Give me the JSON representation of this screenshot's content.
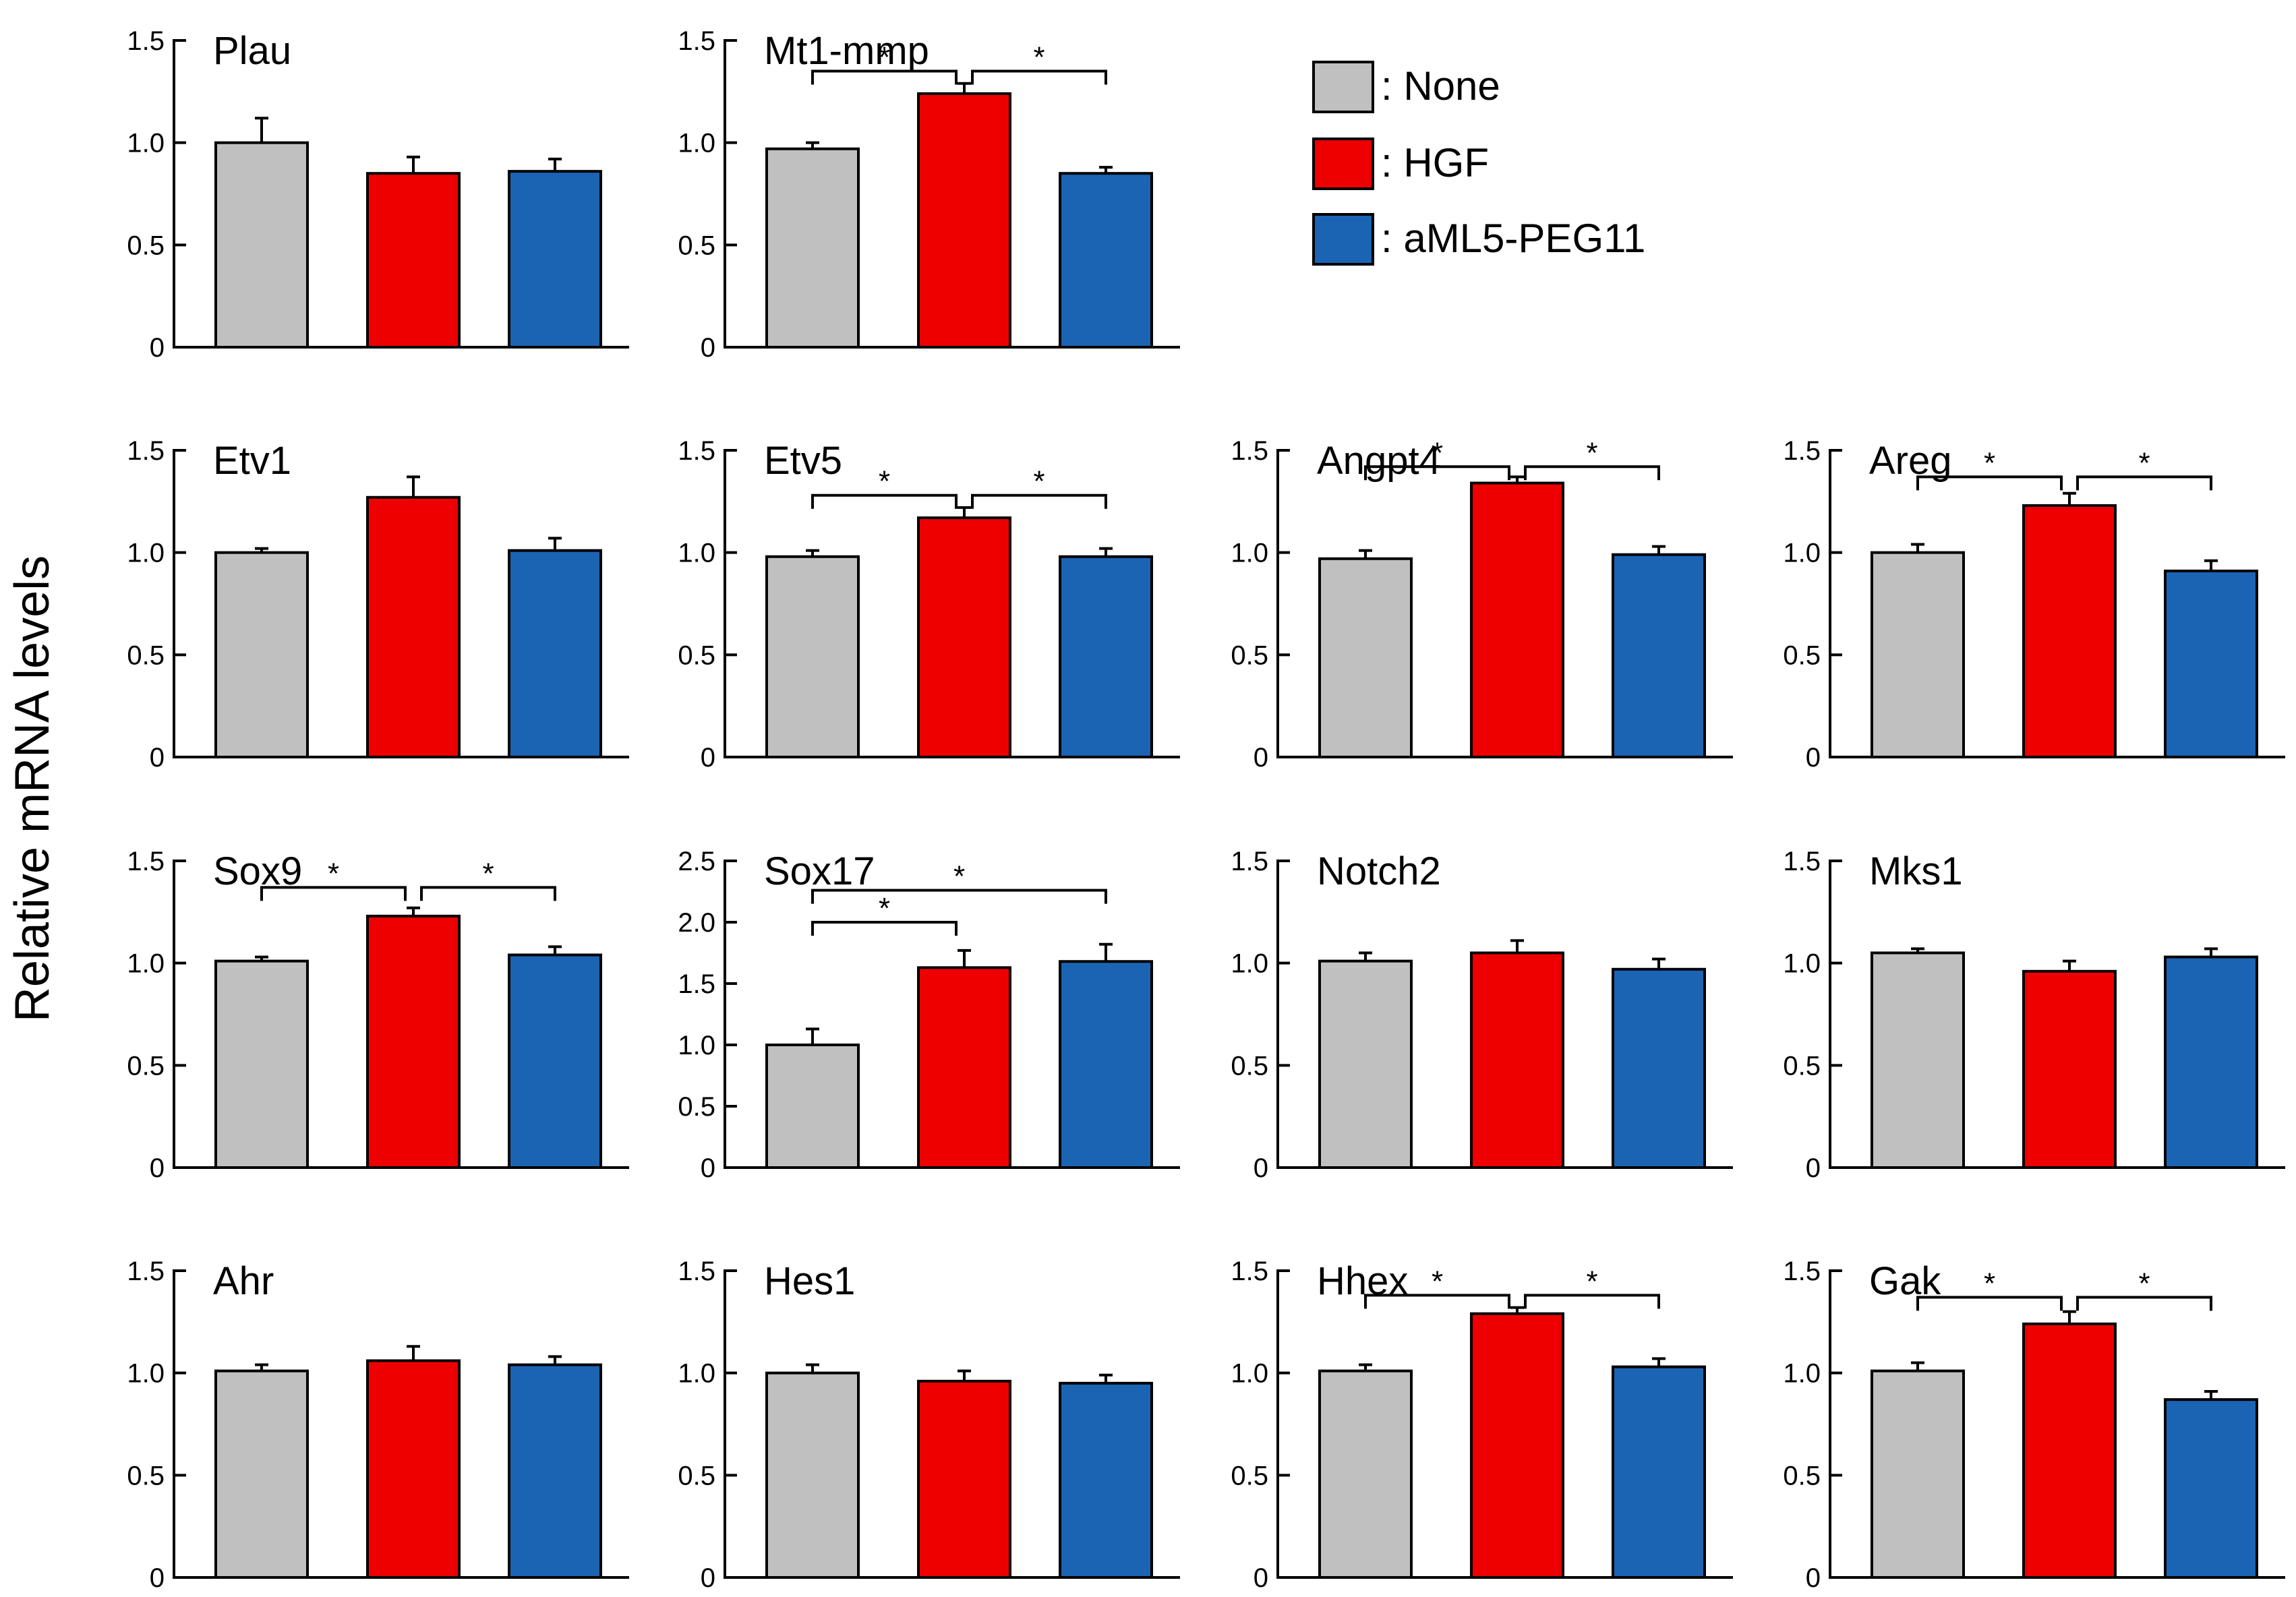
{
  "chart_data": {
    "type": "bar",
    "ylabel": "Relative mRNA levels",
    "series": [
      {
        "name": ": None",
        "color": "#c0c0c0"
      },
      {
        "name": ": HGF",
        "color": "#ee0000"
      },
      {
        "name": ": aML5-PEG11",
        "color": "#1b64b4"
      }
    ],
    "panels": [
      {
        "title": "Plau",
        "ylim": [
          0,
          1.5
        ],
        "yticks": [
          "0",
          "0.5",
          "1.0",
          "1.5"
        ],
        "values": [
          1.0,
          0.85,
          0.86
        ],
        "errors": [
          0.12,
          0.08,
          0.06
        ],
        "comparisons": []
      },
      {
        "title": "Mt1-mmp",
        "ylim": [
          0,
          1.5
        ],
        "yticks": [
          "0",
          "0.5",
          "1.0",
          "1.5"
        ],
        "values": [
          0.97,
          1.24,
          0.85
        ],
        "errors": [
          0.03,
          0.05,
          0.03
        ],
        "comparisons": [
          {
            "from": 0,
            "to": 1,
            "level": 1.35,
            "label": "*"
          },
          {
            "from": 1,
            "to": 2,
            "level": 1.35,
            "label": "*"
          }
        ]
      },
      {
        "title": "Etv1",
        "ylim": [
          0,
          1.5
        ],
        "yticks": [
          "0",
          "0.5",
          "1.0",
          "1.5"
        ],
        "values": [
          1.0,
          1.27,
          1.01
        ],
        "errors": [
          0.02,
          0.1,
          0.06
        ],
        "comparisons": []
      },
      {
        "title": "Etv5",
        "ylim": [
          0,
          1.5
        ],
        "yticks": [
          "0",
          "0.5",
          "1.0",
          "1.5"
        ],
        "values": [
          0.98,
          1.17,
          0.98
        ],
        "errors": [
          0.03,
          0.05,
          0.04
        ],
        "comparisons": [
          {
            "from": 0,
            "to": 1,
            "level": 1.28,
            "label": "*"
          },
          {
            "from": 1,
            "to": 2,
            "level": 1.28,
            "label": "*"
          }
        ]
      },
      {
        "title": "Angpt4",
        "ylim": [
          0,
          1.5
        ],
        "yticks": [
          "0",
          "0.5",
          "1.0",
          "1.5"
        ],
        "values": [
          0.97,
          1.34,
          0.99
        ],
        "errors": [
          0.04,
          0.03,
          0.04
        ],
        "comparisons": [
          {
            "from": 0,
            "to": 1,
            "level": 1.42,
            "label": "*"
          },
          {
            "from": 1,
            "to": 2,
            "level": 1.42,
            "label": "*"
          }
        ]
      },
      {
        "title": "Areg",
        "ylim": [
          0,
          1.5
        ],
        "yticks": [
          "0",
          "0.5",
          "1.0",
          "1.5"
        ],
        "values": [
          1.0,
          1.23,
          0.91
        ],
        "errors": [
          0.04,
          0.06,
          0.05
        ],
        "comparisons": [
          {
            "from": 0,
            "to": 1,
            "level": 1.37,
            "label": "*"
          },
          {
            "from": 1,
            "to": 2,
            "level": 1.37,
            "label": "*"
          }
        ]
      },
      {
        "title": "Sox9",
        "ylim": [
          0,
          1.5
        ],
        "yticks": [
          "0",
          "0.5",
          "1.0",
          "1.5"
        ],
        "values": [
          1.01,
          1.23,
          1.04
        ],
        "errors": [
          0.02,
          0.04,
          0.04
        ],
        "comparisons": [
          {
            "from": 0,
            "to": 1,
            "level": 1.37,
            "label": "*"
          },
          {
            "from": 1,
            "to": 2,
            "level": 1.37,
            "label": "*"
          }
        ]
      },
      {
        "title": "Sox17",
        "ylim": [
          0,
          2.5
        ],
        "yticks": [
          "0",
          "0.5",
          "1.0",
          "1.5",
          "2.0",
          "2.5"
        ],
        "values": [
          1.0,
          1.63,
          1.68
        ],
        "errors": [
          0.13,
          0.14,
          0.14
        ],
        "comparisons": [
          {
            "from": 0,
            "to": 1,
            "level": 2.0,
            "label": "*"
          },
          {
            "from": 0,
            "to": 2,
            "level": 2.26,
            "label": "*"
          }
        ]
      },
      {
        "title": "Notch2",
        "ylim": [
          0,
          1.5
        ],
        "yticks": [
          "0",
          "0.5",
          "1.0",
          "1.5"
        ],
        "values": [
          1.01,
          1.05,
          0.97
        ],
        "errors": [
          0.04,
          0.06,
          0.05
        ],
        "comparisons": []
      },
      {
        "title": "Mks1",
        "ylim": [
          0,
          1.5
        ],
        "yticks": [
          "0",
          "0.5",
          "1.0",
          "1.5"
        ],
        "values": [
          1.05,
          0.96,
          1.03
        ],
        "errors": [
          0.02,
          0.05,
          0.04
        ],
        "comparisons": []
      },
      {
        "title": "Ahr",
        "ylim": [
          0,
          1.5
        ],
        "yticks": [
          "0",
          "0.5",
          "1.0",
          "1.5"
        ],
        "values": [
          1.01,
          1.06,
          1.04
        ],
        "errors": [
          0.03,
          0.07,
          0.04
        ],
        "comparisons": []
      },
      {
        "title": "Hes1",
        "ylim": [
          0,
          1.5
        ],
        "yticks": [
          "0",
          "0.5",
          "1.0",
          "1.5"
        ],
        "values": [
          1.0,
          0.96,
          0.95
        ],
        "errors": [
          0.04,
          0.05,
          0.04
        ],
        "comparisons": []
      },
      {
        "title": "Hhex",
        "ylim": [
          0,
          1.5
        ],
        "yticks": [
          "0",
          "0.5",
          "1.0",
          "1.5"
        ],
        "values": [
          1.01,
          1.29,
          1.03
        ],
        "errors": [
          0.03,
          0.03,
          0.04
        ],
        "comparisons": [
          {
            "from": 0,
            "to": 1,
            "level": 1.38,
            "label": "*"
          },
          {
            "from": 1,
            "to": 2,
            "level": 1.38,
            "label": "*"
          }
        ]
      },
      {
        "title": "Gak",
        "ylim": [
          0,
          1.5
        ],
        "yticks": [
          "0",
          "0.5",
          "1.0",
          "1.5"
        ],
        "values": [
          1.01,
          1.24,
          0.87
        ],
        "errors": [
          0.04,
          0.06,
          0.04
        ],
        "comparisons": [
          {
            "from": 0,
            "to": 1,
            "level": 1.37,
            "label": "*"
          },
          {
            "from": 1,
            "to": 2,
            "level": 1.37,
            "label": "*"
          }
        ]
      }
    ]
  }
}
